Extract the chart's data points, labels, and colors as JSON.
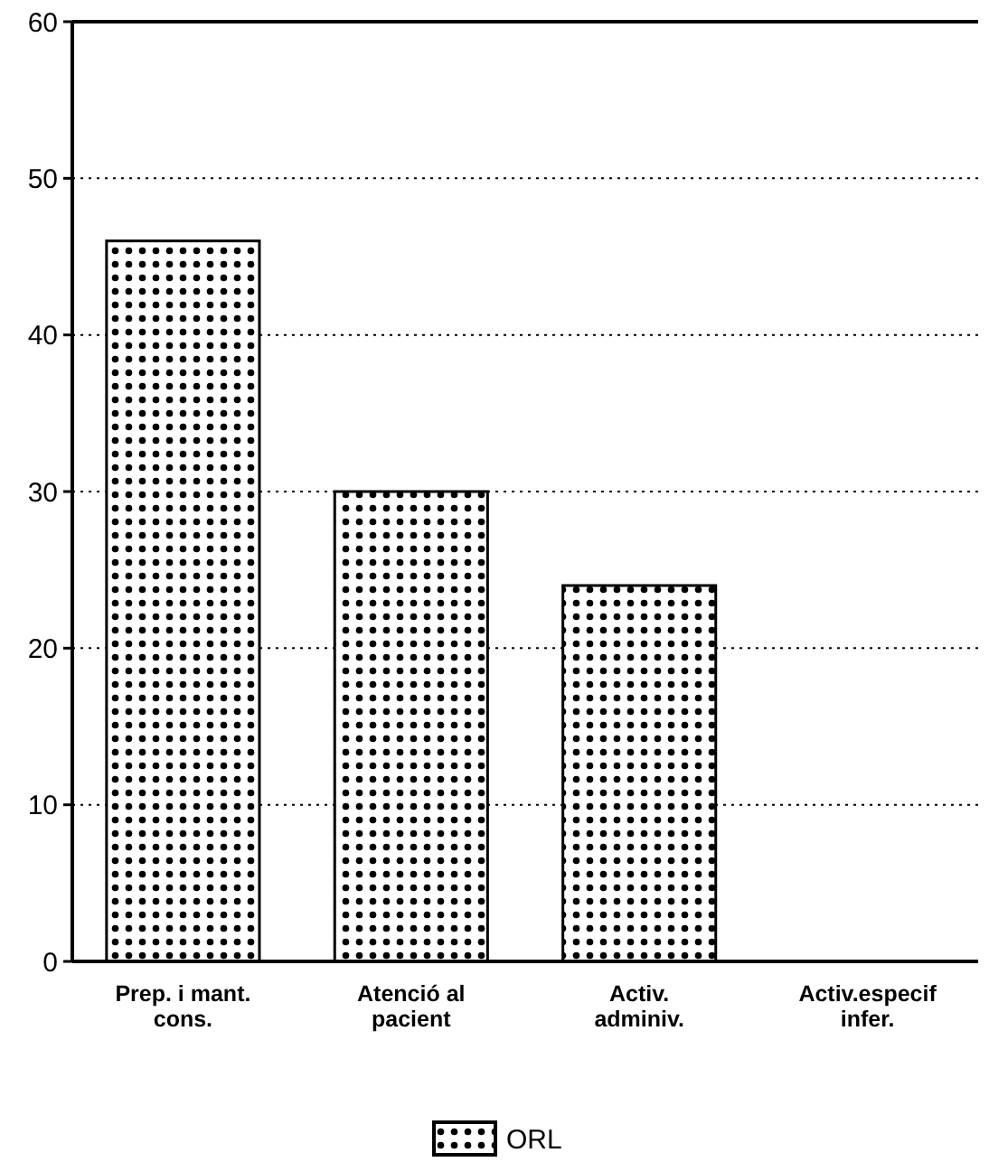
{
  "chart_data": {
    "type": "bar",
    "categories": [
      "Prep. i mant. cons.",
      "Atenció al pacient",
      "Activ. adminiv.",
      "Activ.especif infer."
    ],
    "series": [
      {
        "name": "ORL",
        "color": "#000000",
        "values": [
          46,
          30,
          24,
          0
        ]
      }
    ],
    "ylim": [
      0,
      60
    ],
    "yticks": [
      0,
      10,
      20,
      30,
      40,
      50,
      60
    ],
    "grid": "y",
    "legend": "bottom"
  }
}
